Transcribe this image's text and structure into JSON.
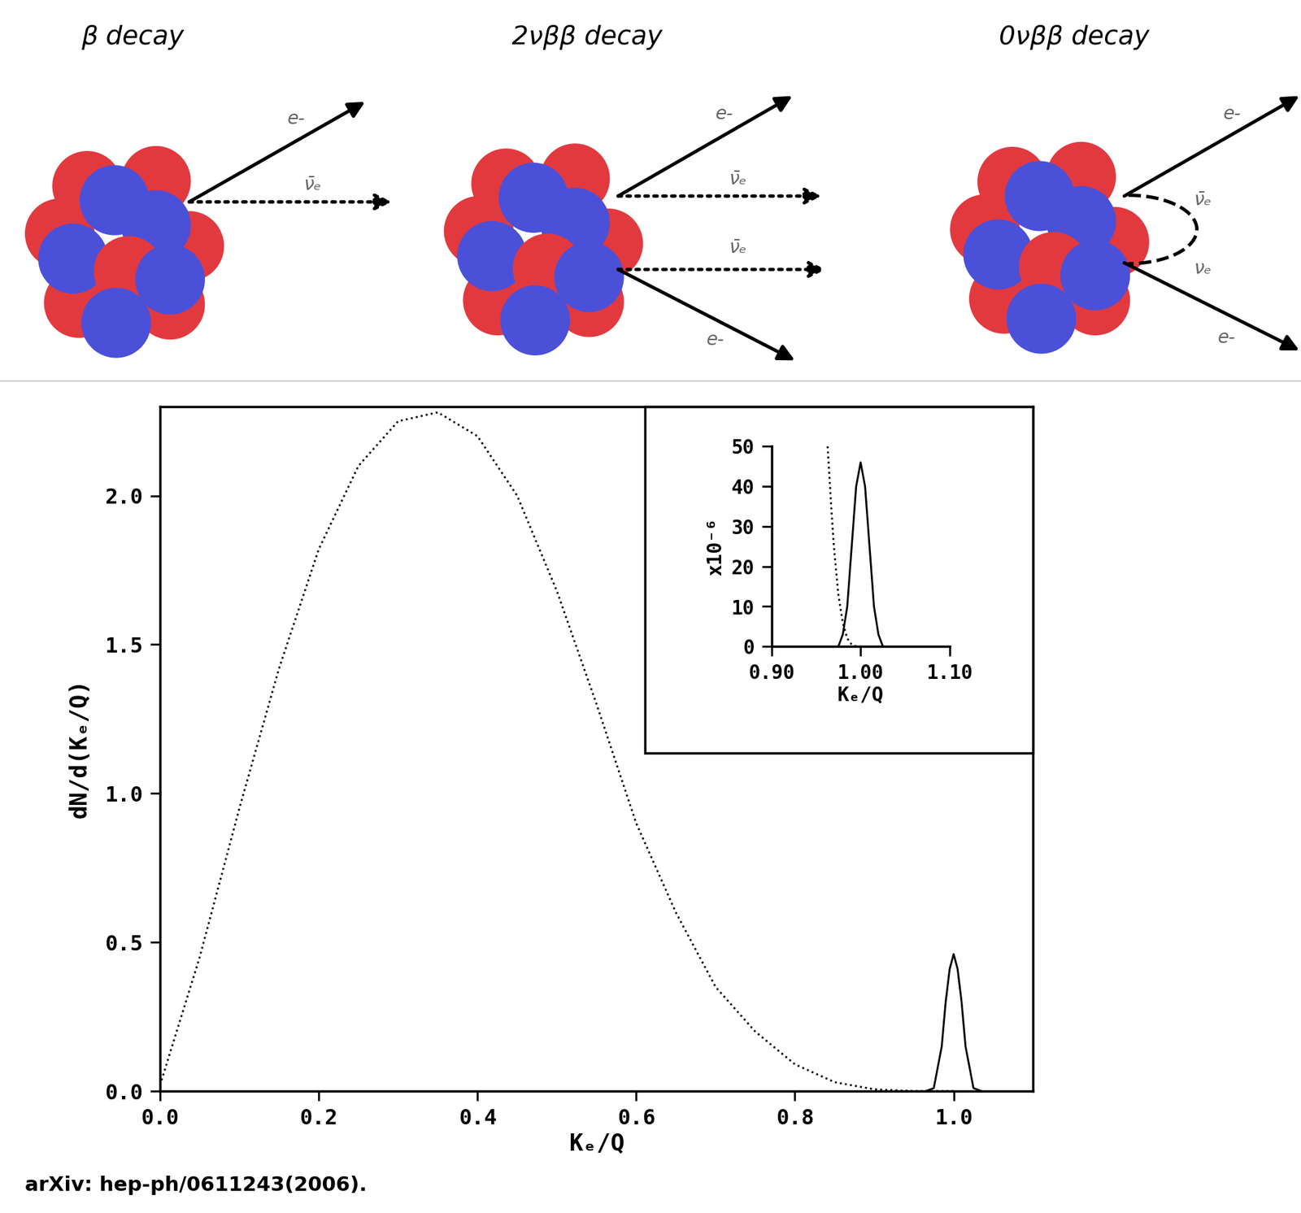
{
  "diagram": {
    "panels": [
      {
        "title": "β decay",
        "labels": [
          "e-",
          "ν̄ₑ"
        ]
      },
      {
        "title": "2νββ decay",
        "labels": [
          "e-",
          "ν̄ₑ",
          "ν̄ₑ",
          "e-"
        ]
      },
      {
        "title": "0νββ decay",
        "labels": [
          "e-",
          "ν̄ₑ",
          "νₑ",
          "e-"
        ]
      }
    ]
  },
  "source": "arXiv: hep-ph/0611243(2006).",
  "chart_data": {
    "type": "line",
    "x_label": "Kₑ/Q",
    "y_label": "dN/d(Kₑ/Q)",
    "xlim": [
      0,
      1.1
    ],
    "ylim": [
      0,
      2.3
    ],
    "xticks": [
      {
        "value": 0,
        "label": "0.0"
      },
      {
        "value": 0.2,
        "label": "0.2"
      },
      {
        "value": 0.4,
        "label": "0.4"
      },
      {
        "value": 0.6,
        "label": "0.6"
      },
      {
        "value": 0.8,
        "label": "0.8"
      },
      {
        "value": 1.0,
        "label": "1.0"
      }
    ],
    "yticks": [
      {
        "value": 0,
        "label": "0.0"
      },
      {
        "value": 0.5,
        "label": "0.5"
      },
      {
        "value": 1.0,
        "label": "1.0"
      },
      {
        "value": 1.5,
        "label": "1.5"
      },
      {
        "value": 2.0,
        "label": "2.0"
      }
    ],
    "series": [
      {
        "color": "black",
        "line_style": "dotted",
        "x": [
          0,
          0.05,
          0.1,
          0.15,
          0.2,
          0.25,
          0.3,
          0.35,
          0.4,
          0.45,
          0.5,
          0.55,
          0.6,
          0.65,
          0.7,
          0.75,
          0.8,
          0.85,
          0.9,
          0.95,
          1.0
        ],
        "values": [
          0.02,
          0.45,
          0.95,
          1.42,
          1.82,
          2.1,
          2.25,
          2.28,
          2.2,
          2.0,
          1.68,
          1.3,
          0.9,
          0.6,
          0.35,
          0.2,
          0.09,
          0.03,
          0.006,
          0.0,
          0.0
        ]
      },
      {
        "color": "black",
        "line_style": "solid",
        "x": [
          0.965,
          0.975,
          0.985,
          0.99,
          0.995,
          1.0,
          1.005,
          1.01,
          1.015,
          1.025,
          1.035
        ],
        "values": [
          0.0,
          0.01,
          0.15,
          0.3,
          0.41,
          0.46,
          0.41,
          0.3,
          0.15,
          0.01,
          0.0
        ]
      }
    ],
    "inset": {
      "y_label": "x10⁻⁶",
      "x_label": "Kₑ/Q",
      "xlim": [
        0.9,
        1.1
      ],
      "ylim": [
        0,
        50
      ],
      "xticks": [
        {
          "value": 0.9,
          "label": "0.90"
        },
        {
          "value": 1.0,
          "label": "1.00"
        },
        {
          "value": 1.1,
          "label": "1.10"
        }
      ],
      "yticks": [
        0,
        10,
        20,
        30,
        40,
        50
      ],
      "series": [
        {
          "color": "black",
          "line_style": "dotted",
          "x": [
            0.963,
            0.967,
            0.97,
            0.975,
            0.98,
            0.985,
            0.99,
            0.995
          ],
          "values": [
            50,
            35,
            25,
            13,
            6,
            2,
            0.5,
            0
          ]
        },
        {
          "color": "black",
          "line_style": "solid",
          "x": [
            0.975,
            0.98,
            0.985,
            0.99,
            0.995,
            1.0,
            1.005,
            1.01,
            1.015,
            1.02,
            1.025
          ],
          "values": [
            0,
            3,
            10,
            25,
            40,
            46,
            40,
            25,
            10,
            3,
            0
          ]
        }
      ]
    }
  }
}
